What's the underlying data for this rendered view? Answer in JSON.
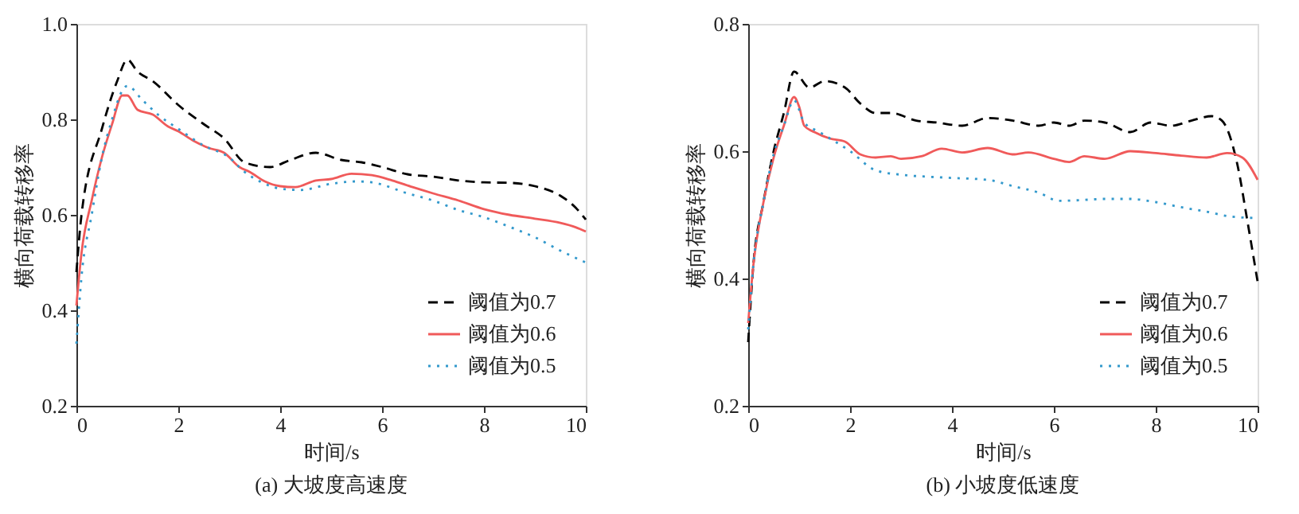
{
  "chart_data": [
    {
      "type": "line",
      "title": "(a)  大坡度高速度",
      "xlabel": "时间/s",
      "ylabel": "横向荷载转移率",
      "xlim": [
        0,
        10
      ],
      "xticks": [
        0,
        2,
        4,
        6,
        8,
        10
      ],
      "ylim": [
        0.2,
        1.0
      ],
      "yticks": [
        0.2,
        0.4,
        0.6,
        0.8,
        {
          "value": 1.0,
          "label": "1.0"
        }
      ],
      "grid": false,
      "legend": "bottom right",
      "series": [
        {
          "name": "阈值为0.7",
          "color": "#000000",
          "line_style": "dashed",
          "x": [
            0,
            0.1,
            0.5,
            0.8,
            1.0,
            1.2,
            1.5,
            2,
            2.5,
            2.9,
            3.3,
            3.8,
            4.2,
            4.7,
            5.2,
            5.6,
            6,
            6.5,
            7,
            7.5,
            8,
            8.5,
            9,
            9.5,
            9.8,
            10
          ],
          "values": [
            0.48,
            0.6,
            0.78,
            0.88,
            0.925,
            0.9,
            0.88,
            0.83,
            0.79,
            0.76,
            0.71,
            0.7,
            0.715,
            0.73,
            0.715,
            0.71,
            0.7,
            0.685,
            0.68,
            0.672,
            0.668,
            0.667,
            0.66,
            0.64,
            0.615,
            0.59
          ]
        },
        {
          "name": "阈值为0.6",
          "color": "#f05a5a",
          "line_style": "solid",
          "x": [
            0,
            0.1,
            0.3,
            0.5,
            0.7,
            0.9,
            1.0,
            1.2,
            1.5,
            1.8,
            2,
            2.3,
            2.6,
            2.9,
            3.2,
            3.4,
            3.7,
            4,
            4.3,
            4.7,
            5,
            5.4,
            5.8,
            6.2,
            6.6,
            7,
            7.5,
            8,
            8.5,
            9,
            9.5,
            9.8,
            10
          ],
          "values": [
            0.41,
            0.52,
            0.63,
            0.72,
            0.79,
            0.85,
            0.85,
            0.82,
            0.81,
            0.785,
            0.775,
            0.755,
            0.74,
            0.73,
            0.7,
            0.69,
            0.67,
            0.66,
            0.658,
            0.672,
            0.675,
            0.686,
            0.683,
            0.672,
            0.658,
            0.645,
            0.63,
            0.612,
            0.6,
            0.592,
            0.583,
            0.574,
            0.565
          ]
        },
        {
          "name": "阈值为0.5",
          "color": "#3399cc",
          "line_style": "dotted",
          "x": [
            0,
            0.1,
            0.3,
            0.5,
            0.7,
            0.9,
            1.0,
            1.3,
            1.6,
            2,
            2.5,
            3,
            3.3,
            3.6,
            4,
            4.4,
            5,
            5.5,
            5.8,
            6.5,
            7,
            7.5,
            8,
            8.5,
            9,
            9.5,
            10
          ],
          "values": [
            0.33,
            0.47,
            0.6,
            0.72,
            0.8,
            0.86,
            0.87,
            0.84,
            0.81,
            0.78,
            0.745,
            0.72,
            0.69,
            0.67,
            0.655,
            0.652,
            0.665,
            0.67,
            0.668,
            0.645,
            0.63,
            0.61,
            0.595,
            0.575,
            0.553,
            0.525,
            0.5
          ]
        }
      ]
    },
    {
      "type": "line",
      "title": "(b)  小坡度低速度",
      "xlabel": "时间/s",
      "ylabel": "横向荷载转移率",
      "xlim": [
        0,
        10
      ],
      "xticks": [
        0,
        2,
        4,
        6,
        8,
        10
      ],
      "ylim": [
        0.2,
        0.8
      ],
      "yticks": [
        0.2,
        0.4,
        0.6,
        0.8
      ],
      "grid": false,
      "legend": "bottom right",
      "series": [
        {
          "name": "阈值为0.7",
          "color": "#000000",
          "line_style": "dashed",
          "x": [
            0,
            0.1,
            0.3,
            0.5,
            0.7,
            0.9,
            1.2,
            1.5,
            1.9,
            2.2,
            2.5,
            2.8,
            3.3,
            3.7,
            4.2,
            4.7,
            5.2,
            5.7,
            6.0,
            6.3,
            6.6,
            7,
            7.5,
            7.9,
            8.3,
            8.7,
            9.1,
            9.3,
            9.6,
            9.8,
            10
          ],
          "values": [
            0.3,
            0.42,
            0.52,
            0.6,
            0.66,
            0.725,
            0.7,
            0.71,
            0.7,
            0.675,
            0.66,
            0.66,
            0.648,
            0.645,
            0.64,
            0.652,
            0.648,
            0.64,
            0.645,
            0.64,
            0.648,
            0.645,
            0.63,
            0.645,
            0.64,
            0.648,
            0.655,
            0.648,
            0.58,
            0.49,
            0.395
          ]
        },
        {
          "name": "阈值为0.6",
          "color": "#f05a5a",
          "line_style": "solid",
          "x": [
            0,
            0.1,
            0.3,
            0.5,
            0.7,
            0.9,
            1.0,
            1.1,
            1.3,
            1.6,
            1.9,
            2.2,
            2.5,
            2.8,
            3,
            3.4,
            3.8,
            4.2,
            4.7,
            5.2,
            5.5,
            6,
            6.3,
            6.6,
            7,
            7.5,
            8,
            8.5,
            9,
            9.4,
            9.7,
            10
          ],
          "values": [
            0.33,
            0.42,
            0.52,
            0.59,
            0.64,
            0.685,
            0.67,
            0.64,
            0.63,
            0.62,
            0.615,
            0.595,
            0.59,
            0.592,
            0.588,
            0.592,
            0.604,
            0.598,
            0.605,
            0.595,
            0.598,
            0.588,
            0.583,
            0.592,
            0.588,
            0.6,
            0.597,
            0.593,
            0.59,
            0.597,
            0.59,
            0.555
          ]
        },
        {
          "name": "阈值为0.5",
          "color": "#3399cc",
          "line_style": "dotted",
          "x": [
            0,
            0.1,
            0.3,
            0.5,
            0.7,
            0.9,
            1.1,
            1.4,
            2,
            2.5,
            3,
            3.5,
            4,
            4.7,
            5.2,
            5.7,
            6.1,
            6.5,
            7,
            7.5,
            8,
            8.5,
            9,
            9.5,
            10
          ],
          "values": [
            0.32,
            0.42,
            0.52,
            0.595,
            0.64,
            0.68,
            0.645,
            0.63,
            0.6,
            0.57,
            0.563,
            0.56,
            0.558,
            0.555,
            0.545,
            0.535,
            0.522,
            0.523,
            0.525,
            0.525,
            0.52,
            0.512,
            0.505,
            0.497,
            0.495
          ]
        }
      ]
    }
  ]
}
